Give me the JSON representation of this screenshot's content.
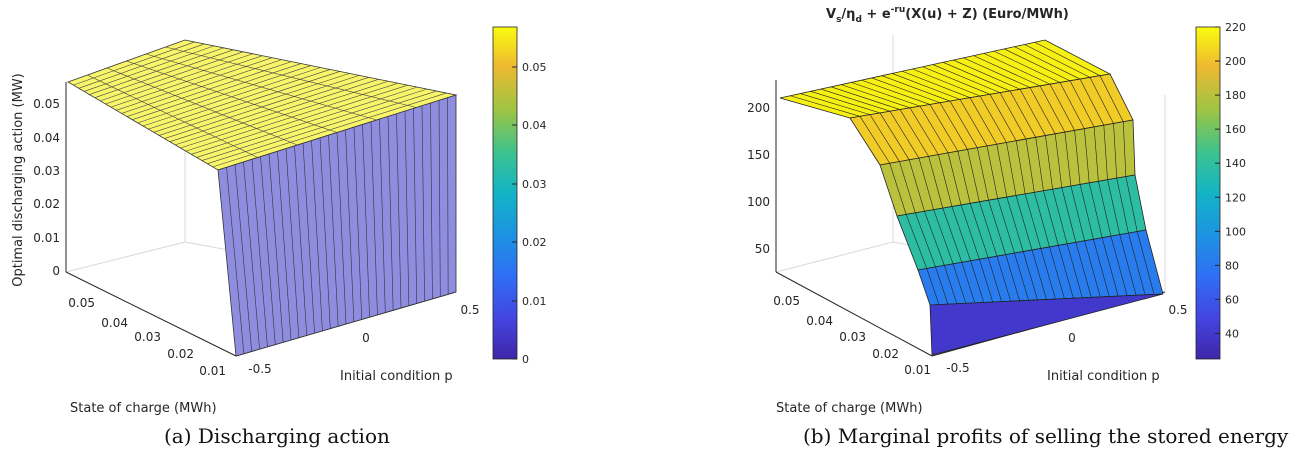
{
  "panels": [
    {
      "caption": "(a) Discharging action",
      "zlabel": "Optimal discharging action (MW)",
      "xlabel": "Initial condition p",
      "ylabel": "State of charge (MWh)",
      "z_ticks": [
        "0",
        "0.01",
        "0.02",
        "0.03",
        "0.04",
        "0.05"
      ],
      "y_ticks": [
        "0.05",
        "0.04",
        "0.03",
        "0.02",
        "0.01"
      ],
      "x_ticks": [
        "-0.5",
        "0",
        "0.5"
      ],
      "colorbar_ticks": [
        "0",
        "0.01",
        "0.02",
        "0.03",
        "0.04",
        "0.05"
      ]
    },
    {
      "caption": "(b) Marginal profits of selling the stored energy",
      "title_parts": {
        "t1": "V",
        "t1_sub": "s",
        "t2": "/η",
        "t2_sub": "d",
        "t3": " + e",
        "t3_sup": "-ru",
        "t4": "(X(u) + Z) (Euro/MWh)"
      },
      "z_ticks": [
        "50",
        "100",
        "150",
        "200"
      ],
      "y_ticks": [
        "0.05",
        "0.04",
        "0.03",
        "0.02",
        "0.01"
      ],
      "x_ticks": [
        "-0.5",
        "0",
        "0.5"
      ],
      "xlabel": "Initial condition p",
      "ylabel": "State of charge (MWh)",
      "colorbar_ticks": [
        "40",
        "60",
        "80",
        "100",
        "120",
        "140",
        "160",
        "180",
        "200",
        "220"
      ]
    }
  ],
  "chart_data": [
    {
      "type": "surface",
      "x_range": [
        -0.5,
        0.5
      ],
      "y_range": [
        0.01,
        0.055
      ],
      "z_range": [
        0,
        0.055
      ],
      "description_values": {
        "x_threshold": -0.55,
        "z_high": 0.055,
        "z_low": 0
      },
      "colormap": "parula",
      "colors": {
        "high": "#f9f56a",
        "low": "#8f8de0"
      }
    },
    {
      "type": "surface",
      "x_range": [
        -0.5,
        0.5
      ],
      "y_range": [
        0.01,
        0.055
      ],
      "z_range": [
        25,
        220
      ],
      "profile_soc": [
        0.055,
        0.045,
        0.035,
        0.025,
        0.015,
        0.01
      ],
      "profile_value": [
        220,
        212,
        195,
        165,
        110,
        55
      ],
      "colormap": "parula",
      "colorbar_range": [
        25,
        220
      ]
    }
  ]
}
